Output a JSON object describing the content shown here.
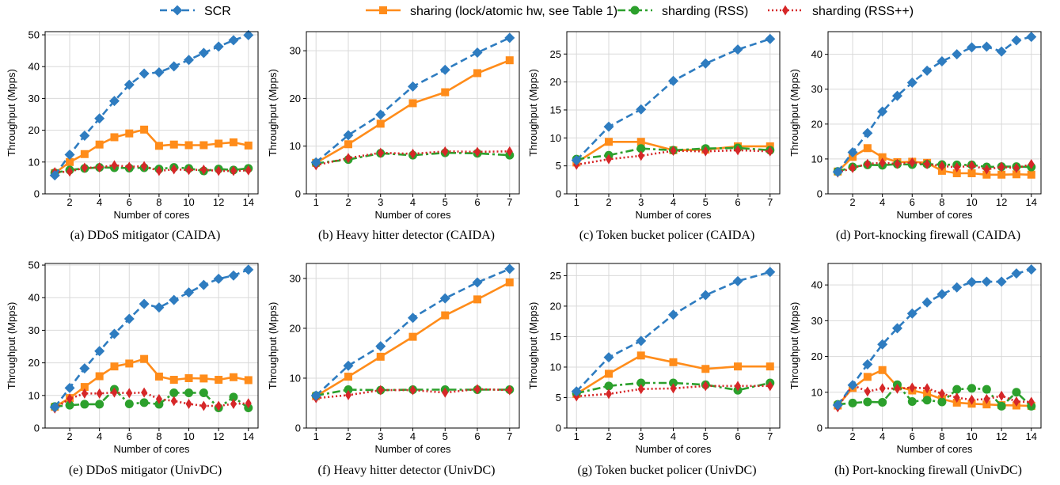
{
  "legend": {
    "entries": [
      {
        "label": "SCR",
        "color": "#2e7cc0",
        "marker": "diamond",
        "dash": "dashed"
      },
      {
        "label": "sharing (lock/atomic hw, see Table 1)",
        "color": "#ff8c1a",
        "marker": "square",
        "dash": "solid"
      },
      {
        "label": "sharding (RSS)",
        "color": "#2ca02c",
        "marker": "circle",
        "dash": "dashdot"
      },
      {
        "label": "sharding (RSS++)",
        "color": "#d62728",
        "marker": "thin-diamond",
        "dash": "dotted"
      }
    ]
  },
  "chart_data": [
    {
      "type": "line",
      "caption": "(a) DDoS mitigator (CAIDA)",
      "xlabel": "Number of cores",
      "ylabel": "Throughput (Mpps)",
      "xlim": [
        0.35,
        14.65
      ],
      "ylim": [
        0,
        51
      ],
      "xticks": [
        2,
        4,
        6,
        8,
        10,
        12,
        14
      ],
      "yticks": [
        0,
        10,
        20,
        30,
        40,
        50
      ],
      "grid": true,
      "x": [
        1,
        2,
        3,
        4,
        5,
        6,
        7,
        8,
        9,
        10,
        11,
        12,
        13,
        14
      ],
      "series": [
        {
          "name": "SCR",
          "values": [
            5.8,
            12.3,
            18.3,
            23.7,
            29.2,
            34.3,
            37.8,
            38.2,
            40.1,
            42.1,
            44.3,
            46.3,
            48.3,
            49.9
          ]
        },
        {
          "name": "sharing (lock/atomic hw, see Table 1)",
          "values": [
            6.5,
            10.0,
            12.5,
            15.5,
            17.8,
            19.0,
            20.2,
            15.1,
            15.5,
            15.3,
            15.3,
            15.8,
            16.2,
            15.2
          ]
        },
        {
          "name": "sharding (RSS)",
          "values": [
            6.6,
            7.5,
            8.0,
            8.3,
            8.2,
            8.1,
            8.2,
            7.8,
            8.3,
            8.0,
            7.2,
            7.8,
            7.5,
            8.0
          ]
        },
        {
          "name": "sharding (RSS++)",
          "values": [
            6.8,
            7.0,
            8.2,
            8.3,
            9.0,
            8.5,
            8.7,
            7.2,
            7.7,
            7.5,
            7.6,
            7.2,
            7.2,
            7.4
          ]
        }
      ]
    },
    {
      "type": "line",
      "caption": "(b) Heavy hitter detector (CAIDA)",
      "xlabel": "Number of cores",
      "ylabel": "Throughput (Mpps)",
      "xlim": [
        0.7,
        7.3
      ],
      "ylim": [
        0,
        34
      ],
      "xticks": [
        1,
        2,
        3,
        4,
        5,
        6,
        7
      ],
      "yticks": [
        0,
        10,
        20,
        30
      ],
      "grid": true,
      "x": [
        1,
        2,
        3,
        4,
        5,
        6,
        7
      ],
      "series": [
        {
          "name": "SCR",
          "values": [
            6.6,
            12.3,
            16.6,
            22.5,
            26.0,
            29.6,
            32.7
          ]
        },
        {
          "name": "sharing (lock/atomic hw, see Table 1)",
          "values": [
            6.5,
            10.4,
            14.7,
            19.0,
            21.3,
            25.3,
            28.0
          ]
        },
        {
          "name": "sharding (RSS)",
          "values": [
            6.4,
            7.2,
            8.5,
            8.1,
            8.6,
            8.5,
            8.1
          ]
        },
        {
          "name": "sharding (RSS++)",
          "values": [
            6.0,
            7.5,
            8.6,
            8.4,
            8.9,
            8.8,
            8.9
          ]
        }
      ]
    },
    {
      "type": "line",
      "caption": "(c) Token bucket policer (CAIDA)",
      "xlabel": "Number of cores",
      "ylabel": "Throughput (Mpps)",
      "xlim": [
        0.7,
        7.3
      ],
      "ylim": [
        0,
        29
      ],
      "xticks": [
        1,
        2,
        3,
        4,
        5,
        6,
        7
      ],
      "yticks": [
        0,
        5,
        10,
        15,
        20,
        25
      ],
      "grid": true,
      "x": [
        1,
        2,
        3,
        4,
        5,
        6,
        7
      ],
      "series": [
        {
          "name": "SCR",
          "values": [
            6.0,
            12.0,
            15.1,
            20.2,
            23.3,
            25.8,
            27.7
          ]
        },
        {
          "name": "sharing (lock/atomic hw, see Table 1)",
          "values": [
            5.6,
            9.3,
            9.3,
            7.8,
            7.9,
            8.5,
            8.5
          ]
        },
        {
          "name": "sharding (RSS)",
          "values": [
            6.2,
            6.9,
            8.1,
            7.8,
            8.1,
            8.2,
            7.8
          ]
        },
        {
          "name": "sharding (RSS++)",
          "values": [
            5.2,
            6.2,
            6.8,
            7.7,
            7.6,
            7.8,
            7.6
          ]
        }
      ]
    },
    {
      "type": "line",
      "caption": "(d) Port-knocking firewall (CAIDA)",
      "xlabel": "Number of cores",
      "ylabel": "Throughput (Mpps)",
      "xlim": [
        0.35,
        14.65
      ],
      "ylim": [
        0,
        46.5
      ],
      "xticks": [
        2,
        4,
        6,
        8,
        10,
        12,
        14
      ],
      "yticks": [
        0,
        10,
        20,
        30,
        40
      ],
      "grid": true,
      "x": [
        1,
        2,
        3,
        4,
        5,
        6,
        7,
        8,
        9,
        10,
        11,
        12,
        13,
        14
      ],
      "series": [
        {
          "name": "SCR",
          "values": [
            6.3,
            11.9,
            17.4,
            23.6,
            28.1,
            31.9,
            35.3,
            38.0,
            40.0,
            42.0,
            42.2,
            40.8,
            44.0,
            45.0
          ]
        },
        {
          "name": "sharing (lock/atomic hw, see Table 1)",
          "values": [
            6.4,
            10.6,
            13.1,
            10.5,
            9.1,
            9.2,
            8.9,
            6.6,
            5.9,
            5.9,
            5.5,
            5.5,
            5.6,
            5.5
          ]
        },
        {
          "name": "sharding (RSS)",
          "values": [
            6.4,
            7.7,
            8.3,
            8.2,
            8.5,
            8.4,
            8.5,
            8.4,
            8.3,
            8.3,
            7.7,
            7.8,
            7.8,
            7.7
          ]
        },
        {
          "name": "sharding (RSS++)",
          "values": [
            6.1,
            7.4,
            8.6,
            8.9,
            8.6,
            9.0,
            8.5,
            8.0,
            7.6,
            8.1,
            7.0,
            7.7,
            7.4,
            8.5
          ]
        }
      ]
    },
    {
      "type": "line",
      "caption": "(e) DDoS mitigator (UnivDC)",
      "xlabel": "Number of cores",
      "ylabel": "Throughput (Mpps)",
      "xlim": [
        0.35,
        14.65
      ],
      "ylim": [
        0,
        50.5
      ],
      "xticks": [
        2,
        4,
        6,
        8,
        10,
        12,
        14
      ],
      "yticks": [
        0,
        10,
        20,
        30,
        40,
        50
      ],
      "grid": true,
      "x": [
        1,
        2,
        3,
        4,
        5,
        6,
        7,
        8,
        9,
        10,
        11,
        12,
        13,
        14
      ],
      "series": [
        {
          "name": "SCR",
          "values": [
            6.4,
            12.3,
            18.3,
            23.6,
            28.9,
            33.5,
            38.1,
            37.0,
            39.3,
            41.6,
            43.9,
            45.8,
            46.8,
            48.6
          ]
        },
        {
          "name": "sharing (lock/atomic hw, see Table 1)",
          "values": [
            6.5,
            9.2,
            12.6,
            15.9,
            18.9,
            19.8,
            21.2,
            15.8,
            14.8,
            15.3,
            15.2,
            14.8,
            15.6,
            14.7
          ]
        },
        {
          "name": "sharding (RSS)",
          "values": [
            6.6,
            7.0,
            7.3,
            7.3,
            11.9,
            7.4,
            7.8,
            7.3,
            10.8,
            10.8,
            10.8,
            6.2,
            9.5,
            6.2
          ]
        },
        {
          "name": "sharding (RSS++)",
          "values": [
            6.0,
            9.0,
            10.6,
            10.6,
            10.9,
            10.7,
            10.9,
            8.9,
            8.3,
            7.4,
            6.8,
            6.8,
            7.4,
            7.6
          ]
        }
      ]
    },
    {
      "type": "line",
      "caption": "(f) Heavy hitter detector (UnivDC)",
      "xlabel": "Number of cores",
      "ylabel": "Throughput (Mpps)",
      "xlim": [
        0.7,
        7.3
      ],
      "ylim": [
        0,
        33
      ],
      "xticks": [
        1,
        2,
        3,
        4,
        5,
        6,
        7
      ],
      "yticks": [
        0,
        10,
        20,
        30
      ],
      "grid": true,
      "x": [
        1,
        2,
        3,
        4,
        5,
        6,
        7
      ],
      "series": [
        {
          "name": "SCR",
          "values": [
            6.5,
            12.5,
            16.4,
            22.1,
            26.0,
            29.2,
            31.9
          ]
        },
        {
          "name": "sharing (lock/atomic hw, see Table 1)",
          "values": [
            6.4,
            10.3,
            14.3,
            18.3,
            22.6,
            25.8,
            29.2
          ]
        },
        {
          "name": "sharding (RSS)",
          "values": [
            6.5,
            7.7,
            7.6,
            7.7,
            7.7,
            7.7,
            7.7
          ]
        },
        {
          "name": "sharding (RSS++)",
          "values": [
            6.0,
            6.6,
            7.6,
            7.6,
            7.1,
            7.8,
            7.6
          ]
        }
      ]
    },
    {
      "type": "line",
      "caption": "(g) Token bucket policer (UnivDC)",
      "xlabel": "Number of cores",
      "ylabel": "Throughput (Mpps)",
      "xlim": [
        0.7,
        7.3
      ],
      "ylim": [
        0,
        27
      ],
      "xticks": [
        1,
        2,
        3,
        4,
        5,
        6,
        7
      ],
      "yticks": [
        0,
        5,
        10,
        15,
        20,
        25
      ],
      "grid": true,
      "x": [
        1,
        2,
        3,
        4,
        5,
        6,
        7
      ],
      "series": [
        {
          "name": "SCR",
          "values": [
            6.0,
            11.6,
            14.3,
            18.6,
            21.8,
            24.1,
            25.6
          ]
        },
        {
          "name": "sharing (lock/atomic hw, see Table 1)",
          "values": [
            5.6,
            8.9,
            11.9,
            10.8,
            9.7,
            10.1,
            10.1
          ]
        },
        {
          "name": "sharding (RSS)",
          "values": [
            5.7,
            6.9,
            7.4,
            7.4,
            7.1,
            6.2,
            7.4
          ]
        },
        {
          "name": "sharding (RSS++)",
          "values": [
            5.2,
            5.6,
            6.4,
            6.5,
            6.9,
            6.9,
            6.9
          ]
        }
      ]
    },
    {
      "type": "line",
      "caption": "(h) Port-knocking firewall (UnivDC)",
      "xlabel": "Number of cores",
      "ylabel": "Throughput (Mpps)",
      "xlim": [
        0.35,
        14.65
      ],
      "ylim": [
        0,
        46
      ],
      "xticks": [
        2,
        4,
        6,
        8,
        10,
        12,
        14
      ],
      "yticks": [
        0,
        10,
        20,
        30,
        40
      ],
      "grid": true,
      "x": [
        1,
        2,
        3,
        4,
        5,
        6,
        7,
        8,
        9,
        10,
        11,
        12,
        13,
        14
      ],
      "series": [
        {
          "name": "SCR",
          "values": [
            6.4,
            12.0,
            17.8,
            23.4,
            27.9,
            32.0,
            35.1,
            37.4,
            39.3,
            40.8,
            40.9,
            40.9,
            43.2,
            44.3
          ]
        },
        {
          "name": "sharing (lock/atomic hw, see Table 1)",
          "values": [
            6.3,
            11.2,
            14.3,
            16.2,
            11.6,
            10.5,
            9.6,
            8.1,
            7.1,
            6.8,
            6.6,
            6.4,
            6.3,
            6.2
          ]
        },
        {
          "name": "sharding (RSS)",
          "values": [
            6.6,
            7.0,
            7.3,
            7.2,
            12.1,
            7.4,
            7.8,
            7.3,
            10.8,
            11.1,
            10.8,
            6.1,
            10.0,
            6.1
          ]
        },
        {
          "name": "sharding (RSS++)",
          "values": [
            5.8,
            12.0,
            10.2,
            11.1,
            11.0,
            11.3,
            11.1,
            9.6,
            8.5,
            7.9,
            8.1,
            9.0,
            7.4,
            7.3
          ]
        }
      ]
    }
  ]
}
